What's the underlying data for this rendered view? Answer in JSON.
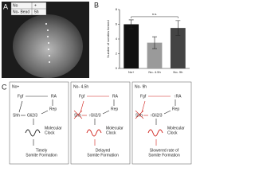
{
  "panel_labels": [
    "A",
    "B",
    "C"
  ],
  "panel_a": {
    "labels": [
      "No",
      "+",
      "No- Bead",
      "5h"
    ]
  },
  "chart_data": {
    "type": "bar",
    "ylabel": "Number of somites formed",
    "categories": [
      "No+",
      "No- 4.5h",
      "No- 9h"
    ],
    "values": [
      6,
      3.5,
      5.5
    ],
    "errors": [
      0.6,
      0.8,
      1
    ],
    "colors": [
      "#111111",
      "#9a9a9a",
      "#444444"
    ],
    "ylim": [
      0,
      8
    ],
    "yticks": [
      0,
      2,
      4,
      6,
      8
    ],
    "annotation": "n.s."
  },
  "panel_c": {
    "diagrams": [
      {
        "title": "No+",
        "fgf": "Fgf",
        "ra": "RA",
        "shh": "Shh",
        "gli": "Gli2/3",
        "rep": "Rep",
        "clock": [
          "Molecular",
          "Clock"
        ],
        "outcome": [
          "Timely",
          "Somite Formation"
        ]
      },
      {
        "title": "No- 4.5h",
        "fgf": "Fgf",
        "ra": "RA",
        "shh": "Shh",
        "gli": "↑Gli2/3",
        "rep": "Rep",
        "clock": [
          "Molecular",
          "Clock"
        ],
        "outcome": [
          "Delayed",
          "Somite Formation"
        ]
      },
      {
        "title": "No- 9h",
        "fgf": "Fgf",
        "ra": "↑RA",
        "shh": "Shh",
        "gli": "↑Gli2/3",
        "rep": "Rep",
        "clock": [
          "Molecular",
          "Clock"
        ],
        "outcome": [
          "Slowered rate of",
          "Somite Formation"
        ]
      }
    ]
  }
}
